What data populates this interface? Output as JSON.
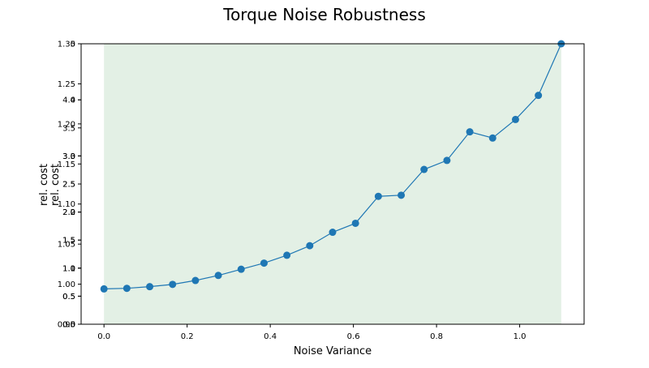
{
  "chart_data": {
    "type": "line",
    "title": "Torque Noise Robustness",
    "xlabel": "Noise Variance",
    "ylabel": "rel. cost",
    "xlim": [
      -0.055,
      1.155
    ],
    "x_ticks": [
      "0.0",
      "0.2",
      "0.4",
      "0.6",
      "0.8",
      "1.0"
    ],
    "y_axes": [
      {
        "ylim": [
          0.0,
          5.0
        ],
        "ticks": [
          "0.0",
          "0.5",
          "1.0",
          "1.5",
          "2.0",
          "2.5",
          "3.0"
        ]
      },
      {
        "ylim": [
          0.0,
          5.0
        ],
        "ticks": [
          "0",
          "1",
          "2",
          "3",
          "4",
          "5"
        ]
      },
      {
        "ylim": [
          0.0,
          5.0
        ],
        "ticks": [
          "0.0",
          "0.5",
          "1.0",
          "1.5",
          "2.0",
          "2.5",
          "3.0",
          "3.5",
          "4.0"
        ]
      },
      {
        "ylim": [
          0.95,
          1.3
        ],
        "ticks": [
          "0.95",
          "1.00",
          "1.05",
          "1.10",
          "1.15",
          "1.20",
          "1.25",
          "1.30"
        ]
      }
    ],
    "shaded_region": {
      "x": [
        0.0,
        1.1
      ],
      "color": "#e3f0e5"
    },
    "series": [
      {
        "color": "#1f77b4",
        "x": [
          0.0,
          0.055,
          0.11,
          0.165,
          0.22,
          0.275,
          0.33,
          0.385,
          0.44,
          0.495,
          0.55,
          0.605,
          0.66,
          0.715,
          0.77,
          0.825,
          0.88,
          0.935,
          0.99,
          1.045,
          1.1
        ],
        "y": [
          0.63,
          0.64,
          0.67,
          0.71,
          0.78,
          0.87,
          0.98,
          1.09,
          1.23,
          1.4,
          1.64,
          1.8,
          2.28,
          2.3,
          2.76,
          2.92,
          3.43,
          3.32,
          3.65,
          4.08,
          5.0
        ]
      }
    ]
  }
}
